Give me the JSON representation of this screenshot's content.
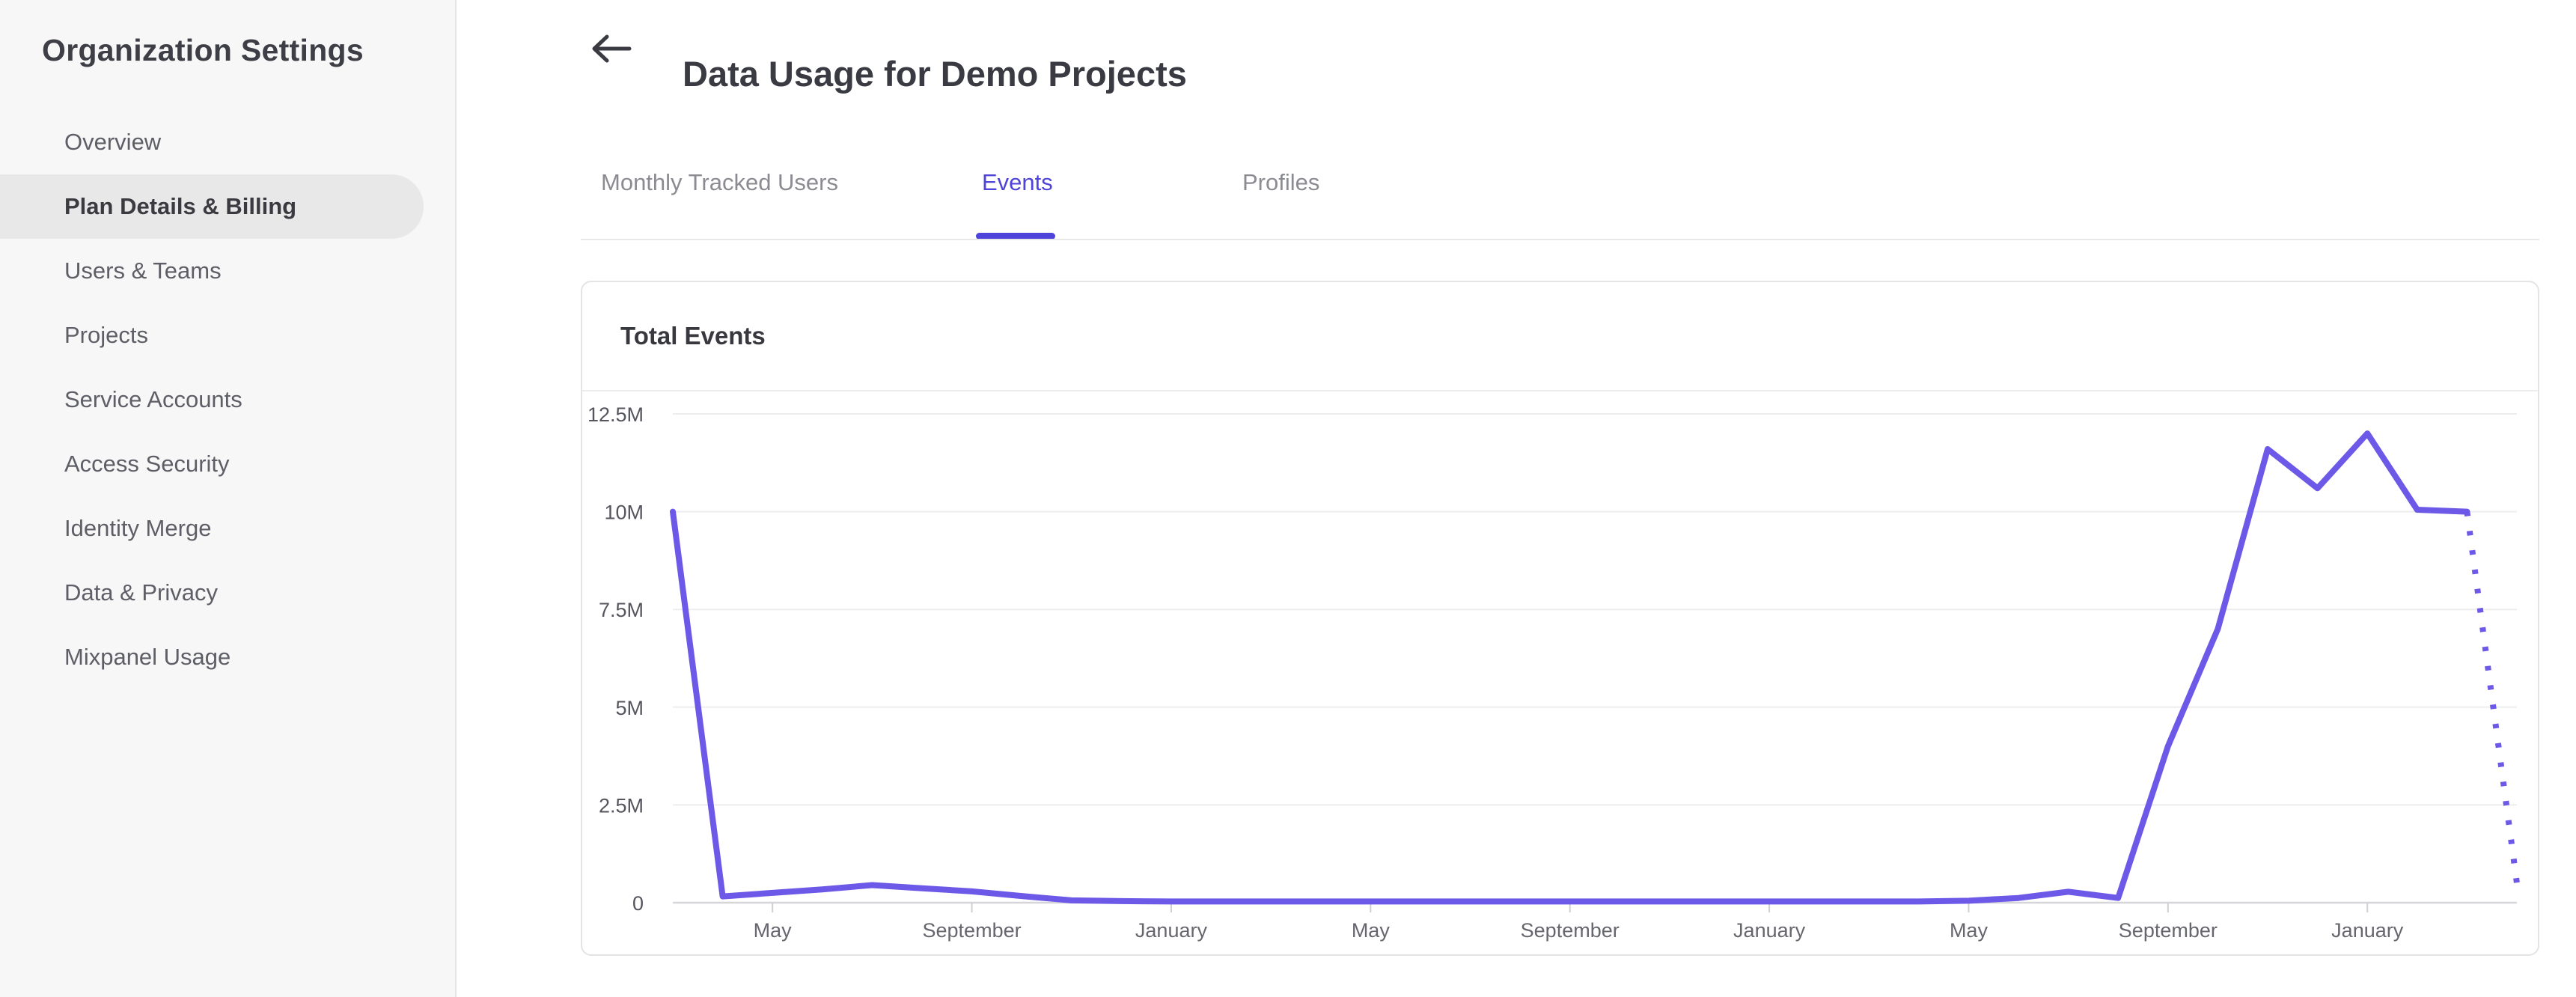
{
  "sidebar": {
    "title": "Organization Settings",
    "items": [
      {
        "label": "Overview",
        "selected": false
      },
      {
        "label": "Plan Details & Billing",
        "selected": true
      },
      {
        "label": "Users & Teams",
        "selected": false
      },
      {
        "label": "Projects",
        "selected": false
      },
      {
        "label": "Service Accounts",
        "selected": false
      },
      {
        "label": "Access Security",
        "selected": false
      },
      {
        "label": "Identity Merge",
        "selected": false
      },
      {
        "label": "Data & Privacy",
        "selected": false
      },
      {
        "label": "Mixpanel Usage",
        "selected": false
      }
    ]
  },
  "header": {
    "title": "Data Usage for Demo Projects"
  },
  "tabs": [
    {
      "label": "Monthly Tracked Users",
      "active": false
    },
    {
      "label": "Events",
      "active": true
    },
    {
      "label": "Profiles",
      "active": false
    }
  ],
  "card": {
    "title": "Total Events"
  },
  "colors": {
    "accent_purple": "#4f44d9",
    "line_purple": "#6d59e8",
    "grid_line": "#ededef",
    "axis_line": "#d6d6d9",
    "tick_mark": "#cfcfd4",
    "axis_label": "#66666e",
    "sidebar_bg": "#f7f7f8",
    "selected_item_bg": "#e8e8e9"
  },
  "chart_data": {
    "type": "line",
    "title": "Total Events",
    "y_unit": "events",
    "ylim_millions": [
      0,
      12.5
    ],
    "y_tick_labels": [
      "0",
      "2.5M",
      "5M",
      "7.5M",
      "10M",
      "12.5M"
    ],
    "y_tick_values_millions": [
      0,
      2.5,
      5,
      7.5,
      10,
      12.5
    ],
    "x_tick_labels": [
      "May",
      "September",
      "January",
      "May",
      "September",
      "January",
      "May",
      "September",
      "January"
    ],
    "x_tick_month_indices": [
      2,
      6,
      10,
      14,
      18,
      22,
      26,
      30,
      34
    ],
    "months_total": 38,
    "grid": "horizontal-only",
    "legend": "none",
    "series": [
      {
        "name": "Total Events (actual)",
        "style": "solid",
        "month_indices": [
          0,
          1,
          2,
          3,
          4,
          5,
          6,
          7,
          8,
          9,
          10,
          11,
          12,
          13,
          14,
          15,
          16,
          17,
          18,
          19,
          20,
          21,
          22,
          23,
          24,
          25,
          26,
          27,
          28,
          29,
          30,
          31,
          32,
          33,
          34,
          35,
          36
        ],
        "values_millions": [
          10.0,
          0.16,
          0.25,
          0.34,
          0.45,
          0.37,
          0.29,
          0.17,
          0.06,
          0.04,
          0.03,
          0.03,
          0.03,
          0.03,
          0.03,
          0.03,
          0.03,
          0.03,
          0.03,
          0.03,
          0.03,
          0.03,
          0.03,
          0.03,
          0.03,
          0.03,
          0.05,
          0.12,
          0.28,
          0.12,
          4.0,
          7.0,
          11.6,
          10.6,
          12.0,
          10.05,
          10.0
        ]
      },
      {
        "name": "Total Events (projected partial month)",
        "style": "dotted",
        "month_indices": [
          36,
          37
        ],
        "values_millions": [
          10.0,
          0.5
        ]
      }
    ]
  }
}
